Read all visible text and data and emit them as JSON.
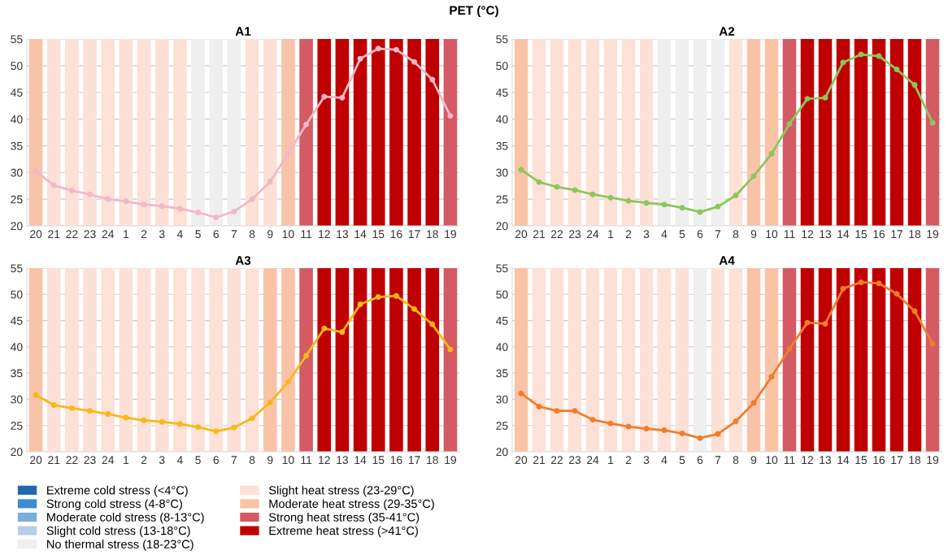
{
  "chart_data": [
    {
      "type": "line",
      "title": "A1",
      "annotations": [
        "PET (°C)"
      ],
      "legend": "bottom left",
      "grid": "y",
      "marker": "circle",
      "categories": [
        "20",
        "21",
        "22",
        "23",
        "24",
        "1",
        "2",
        "3",
        "4",
        "5",
        "6",
        "7",
        "8",
        "9",
        "10",
        "11",
        "12",
        "13",
        "14",
        "15",
        "16",
        "17",
        "18",
        "19"
      ],
      "ylim": [
        20,
        55
      ],
      "yticks": [
        20,
        25,
        30,
        35,
        40,
        45,
        50,
        55
      ],
      "series": [
        {
          "type": "bar",
          "name": "Extreme cold stress (<4°C)",
          "color": "#1f68b0",
          "values": [
            null,
            null,
            null,
            null,
            null,
            null,
            null,
            null,
            null,
            null,
            null,
            null,
            null,
            null,
            null,
            null,
            null,
            null,
            null,
            null,
            null,
            null,
            null,
            null
          ]
        },
        {
          "type": "bar",
          "name": "Strong cold stress (4-8°C)",
          "color": "#3d8ecf",
          "values": [
            null,
            null,
            null,
            null,
            null,
            null,
            null,
            null,
            null,
            null,
            null,
            null,
            null,
            null,
            null,
            null,
            null,
            null,
            null,
            null,
            null,
            null,
            null,
            null
          ]
        },
        {
          "type": "bar",
          "name": "Moderate cold stress (8-13°C)",
          "color": "#7aaedb",
          "values": [
            null,
            null,
            null,
            null,
            null,
            null,
            null,
            null,
            null,
            null,
            null,
            null,
            null,
            null,
            null,
            null,
            null,
            null,
            null,
            null,
            null,
            null,
            null,
            null
          ]
        },
        {
          "type": "bar",
          "name": "Slight cold stress (13-18°C)",
          "color": "#b5cfe9",
          "values": [
            null,
            null,
            null,
            null,
            null,
            null,
            null,
            null,
            null,
            null,
            null,
            null,
            null,
            null,
            null,
            null,
            null,
            null,
            null,
            null,
            null,
            null,
            null,
            null
          ]
        },
        {
          "type": "bar",
          "name": "No thermal stress (18-23°C)",
          "color": "#efefef",
          "values": [
            null,
            null,
            null,
            null,
            null,
            null,
            null,
            null,
            null,
            55,
            55,
            55,
            null,
            null,
            null,
            null,
            null,
            null,
            null,
            null,
            null,
            null,
            null,
            null
          ]
        },
        {
          "type": "bar",
          "name": "Slight heat stress (23-29°C)",
          "color": "#fde0d6",
          "values": [
            null,
            55,
            55,
            55,
            55,
            55,
            55,
            55,
            55,
            null,
            null,
            null,
            55,
            55,
            null,
            null,
            null,
            null,
            null,
            null,
            null,
            null,
            null,
            null
          ]
        },
        {
          "type": "bar",
          "name": "Moderate heat stress (29-35°C)",
          "color": "#f9c3a8",
          "values": [
            55,
            null,
            null,
            null,
            null,
            null,
            null,
            null,
            null,
            null,
            null,
            null,
            null,
            null,
            55,
            null,
            null,
            null,
            null,
            null,
            null,
            null,
            null,
            null
          ]
        },
        {
          "type": "bar",
          "name": "Strong heat stress (35-41°C)",
          "color": "#d45a63",
          "values": [
            null,
            null,
            null,
            null,
            null,
            null,
            null,
            null,
            null,
            null,
            null,
            null,
            null,
            null,
            null,
            55,
            null,
            null,
            null,
            null,
            null,
            null,
            null,
            55
          ]
        },
        {
          "type": "bar",
          "name": "Extreme heat stress (>41°C)",
          "color": "#c00000",
          "values": [
            null,
            null,
            null,
            null,
            null,
            null,
            null,
            null,
            null,
            null,
            null,
            null,
            null,
            null,
            null,
            null,
            55,
            55,
            55,
            55,
            55,
            55,
            55,
            null
          ]
        },
        {
          "color": "#f2b8c8",
          "values": [
            30.2,
            27.6,
            26.6,
            25.9,
            25.0,
            24.6,
            24.0,
            23.7,
            23.2,
            22.5,
            21.6,
            22.7,
            25.0,
            28.3,
            33.5,
            39.0,
            44.2,
            44.0,
            51.3,
            53.2,
            53.0,
            50.7,
            47.4,
            40.6
          ]
        }
      ]
    },
    {
      "type": "line",
      "title": "A2",
      "legend": false,
      "grid": "y",
      "marker": "circle",
      "categories": [
        "20",
        "21",
        "22",
        "23",
        "24",
        "1",
        "2",
        "3",
        "4",
        "5",
        "6",
        "7",
        "8",
        "9",
        "10",
        "11",
        "12",
        "13",
        "14",
        "15",
        "16",
        "17",
        "18",
        "19"
      ],
      "ylim": [
        20,
        55
      ],
      "yticks": [
        20,
        25,
        30,
        35,
        40,
        45,
        50,
        55
      ],
      "series": [
        {
          "type": "bar",
          "color": "#efefef",
          "values": [
            null,
            null,
            null,
            null,
            null,
            null,
            null,
            null,
            55,
            55,
            55,
            55,
            null,
            null,
            null,
            null,
            null,
            null,
            null,
            null,
            null,
            null,
            null,
            null
          ]
        },
        {
          "type": "bar",
          "color": "#fde0d6",
          "values": [
            null,
            55,
            55,
            55,
            55,
            55,
            55,
            55,
            null,
            null,
            null,
            null,
            55,
            null,
            null,
            null,
            null,
            null,
            null,
            null,
            null,
            null,
            null,
            null
          ]
        },
        {
          "type": "bar",
          "color": "#f9c3a8",
          "values": [
            55,
            null,
            null,
            null,
            null,
            null,
            null,
            null,
            null,
            null,
            null,
            null,
            null,
            55,
            55,
            null,
            null,
            null,
            null,
            null,
            null,
            null,
            null,
            null
          ]
        },
        {
          "type": "bar",
          "color": "#d45a63",
          "values": [
            null,
            null,
            null,
            null,
            null,
            null,
            null,
            null,
            null,
            null,
            null,
            null,
            null,
            null,
            null,
            55,
            null,
            null,
            null,
            null,
            null,
            null,
            null,
            55
          ]
        },
        {
          "type": "bar",
          "color": "#c00000",
          "values": [
            null,
            null,
            null,
            null,
            null,
            null,
            null,
            null,
            null,
            null,
            null,
            null,
            null,
            null,
            null,
            null,
            55,
            55,
            55,
            55,
            55,
            55,
            55,
            null
          ]
        },
        {
          "color": "#8dc65c",
          "values": [
            30.5,
            28.2,
            27.3,
            26.7,
            25.9,
            25.3,
            24.7,
            24.3,
            24.0,
            23.4,
            22.6,
            23.6,
            25.7,
            29.3,
            33.5,
            39.1,
            43.8,
            44.0,
            50.6,
            52.1,
            51.8,
            49.3,
            46.4,
            39.3
          ]
        }
      ]
    },
    {
      "type": "line",
      "title": "A3",
      "legend": false,
      "grid": "y",
      "marker": "circle",
      "categories": [
        "20",
        "21",
        "22",
        "23",
        "24",
        "1",
        "2",
        "3",
        "4",
        "5",
        "6",
        "7",
        "8",
        "9",
        "10",
        "11",
        "12",
        "13",
        "14",
        "15",
        "16",
        "17",
        "18",
        "19"
      ],
      "ylim": [
        20,
        55
      ],
      "yticks": [
        20,
        25,
        30,
        35,
        40,
        45,
        50,
        55
      ],
      "series": [
        {
          "type": "bar",
          "color": "#fde0d6",
          "values": [
            null,
            55,
            55,
            55,
            55,
            55,
            55,
            55,
            55,
            55,
            55,
            55,
            55,
            null,
            null,
            null,
            null,
            null,
            null,
            null,
            null,
            null,
            null,
            null
          ]
        },
        {
          "type": "bar",
          "color": "#f9c3a8",
          "values": [
            55,
            null,
            null,
            null,
            null,
            null,
            null,
            null,
            null,
            null,
            null,
            null,
            null,
            55,
            55,
            null,
            null,
            null,
            null,
            null,
            null,
            null,
            null,
            null
          ]
        },
        {
          "type": "bar",
          "color": "#d45a63",
          "values": [
            null,
            null,
            null,
            null,
            null,
            null,
            null,
            null,
            null,
            null,
            null,
            null,
            null,
            null,
            null,
            55,
            null,
            null,
            null,
            null,
            null,
            null,
            null,
            55
          ]
        },
        {
          "type": "bar",
          "color": "#c00000",
          "values": [
            null,
            null,
            null,
            null,
            null,
            null,
            null,
            null,
            null,
            null,
            null,
            null,
            null,
            null,
            null,
            null,
            55,
            55,
            55,
            55,
            55,
            55,
            55,
            null
          ]
        },
        {
          "color": "#f9b817",
          "values": [
            30.8,
            28.9,
            28.3,
            27.8,
            27.2,
            26.5,
            26.0,
            25.7,
            25.3,
            24.7,
            23.9,
            24.6,
            26.4,
            29.4,
            33.3,
            38.3,
            43.5,
            42.8,
            48.1,
            49.5,
            49.7,
            47.2,
            44.3,
            39.5
          ]
        }
      ]
    },
    {
      "type": "line",
      "title": "A4",
      "legend": false,
      "grid": "y",
      "marker": "circle",
      "categories": [
        "20",
        "21",
        "22",
        "23",
        "24",
        "1",
        "2",
        "3",
        "4",
        "5",
        "6",
        "7",
        "8",
        "9",
        "10",
        "11",
        "12",
        "13",
        "14",
        "15",
        "16",
        "17",
        "18",
        "19"
      ],
      "ylim": [
        20,
        55
      ],
      "yticks": [
        20,
        25,
        30,
        35,
        40,
        45,
        50,
        55
      ],
      "series": [
        {
          "type": "bar",
          "color": "#efefef",
          "values": [
            null,
            null,
            null,
            null,
            null,
            null,
            null,
            null,
            null,
            null,
            55,
            null,
            null,
            null,
            null,
            null,
            null,
            null,
            null,
            null,
            null,
            null,
            null,
            null
          ]
        },
        {
          "type": "bar",
          "color": "#fde0d6",
          "values": [
            null,
            55,
            55,
            55,
            55,
            55,
            55,
            55,
            55,
            55,
            null,
            55,
            55,
            null,
            null,
            null,
            null,
            null,
            null,
            null,
            null,
            null,
            null,
            null
          ]
        },
        {
          "type": "bar",
          "color": "#f9c3a8",
          "values": [
            55,
            null,
            null,
            null,
            null,
            null,
            null,
            null,
            null,
            null,
            null,
            null,
            null,
            55,
            55,
            null,
            null,
            null,
            null,
            null,
            null,
            null,
            null,
            null
          ]
        },
        {
          "type": "bar",
          "color": "#d45a63",
          "values": [
            null,
            null,
            null,
            null,
            null,
            null,
            null,
            null,
            null,
            null,
            null,
            null,
            null,
            null,
            null,
            55,
            null,
            null,
            null,
            null,
            null,
            null,
            null,
            55
          ]
        },
        {
          "type": "bar",
          "color": "#c00000",
          "values": [
            null,
            null,
            null,
            null,
            null,
            null,
            null,
            null,
            null,
            null,
            null,
            null,
            null,
            null,
            null,
            null,
            55,
            55,
            55,
            55,
            55,
            55,
            55,
            null
          ]
        },
        {
          "color": "#f07d2b",
          "values": [
            31.1,
            28.6,
            27.8,
            27.8,
            26.1,
            25.4,
            24.8,
            24.4,
            24.1,
            23.5,
            22.6,
            23.4,
            25.8,
            29.3,
            34.3,
            39.6,
            44.6,
            44.4,
            51.1,
            52.3,
            52.1,
            50.1,
            46.8,
            40.6
          ]
        }
      ]
    }
  ]
}
